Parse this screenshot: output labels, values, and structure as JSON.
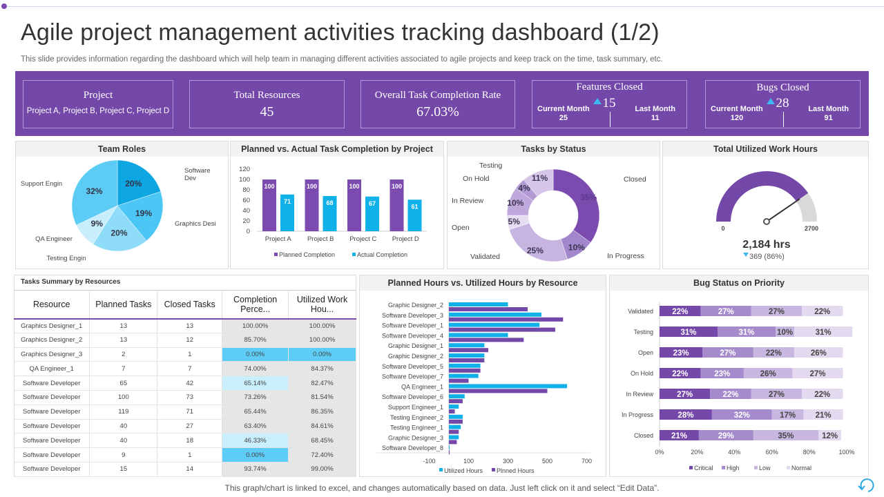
{
  "title": "Agile project management activities tracking dashboard (1/2)",
  "subtitle": "This slide provides information regarding the dashboard which will help team in managing different activities associated to agile projects and keep track on the time, task summary, etc.",
  "kpis": {
    "project": {
      "label": "Project",
      "value": "Project A, Project B, Project C, Project D"
    },
    "resources": {
      "label": "Total Resources",
      "value": "45"
    },
    "completion": {
      "label": "Overall Task Completion Rate",
      "value": "67.03%"
    },
    "features": {
      "label": "Features Closed",
      "value": "15",
      "current_label": "Current Month",
      "current": "25",
      "last_label": "Last Month",
      "last": "11"
    },
    "bugs": {
      "label": "Bugs Closed",
      "value": "28",
      "current_label": "Current Month",
      "current": "120",
      "last_label": "Last Month",
      "last": "91"
    }
  },
  "colors": {
    "purple": "#7448a8",
    "blue": "#10b0e8",
    "accent": "#3db8f5"
  },
  "chart_data": [
    {
      "id": "team_roles",
      "type": "pie",
      "title": "Team Roles",
      "categories": [
        "Software Dev",
        "Graphics Desi",
        "Testing Engin",
        "QA Engineer",
        "Support Engin"
      ],
      "values": [
        20,
        19,
        20,
        9,
        32
      ],
      "labels": [
        "20%",
        "19%",
        "20%",
        "9%",
        "32%"
      ]
    },
    {
      "id": "planned_actual",
      "type": "bar",
      "title": "Planned vs. Actual Task Completion  by Project",
      "categories": [
        "Project A",
        "Project B",
        "Project C",
        "Project D"
      ],
      "series": [
        {
          "name": "Planned Completion",
          "values": [
            100,
            100,
            100,
            100
          ]
        },
        {
          "name": "Actual Completion",
          "values": [
            71,
            68,
            67,
            61
          ]
        }
      ],
      "ylim": [
        0,
        120
      ],
      "yticks": [
        "0",
        "20",
        "40",
        "60",
        "80",
        "100",
        "120"
      ],
      "legend": "bottom"
    },
    {
      "id": "tasks_status",
      "type": "pie",
      "title": "Tasks by Status",
      "categories": [
        "Closed",
        "In Progress",
        "Validated",
        "Open",
        "In Review",
        "On Hold",
        "Testing"
      ],
      "values": [
        35,
        10,
        25,
        5,
        10,
        4,
        11
      ],
      "labels": [
        "35%",
        "10%",
        "25%",
        "5%",
        "10%",
        "4%",
        "11%"
      ]
    },
    {
      "id": "work_hours",
      "type": "gauge",
      "title": "Total Utilized Work Hours",
      "min": "0",
      "max": "2700",
      "value": 2184,
      "value_label": "2,184 hrs",
      "delta": "369 (86%)"
    },
    {
      "id": "hours_by_resource",
      "type": "bar",
      "orientation": "horizontal",
      "title": "Planned Hours vs. Utilized Hours by Resource",
      "categories": [
        "Graphic Designer_2",
        "Software Developer_3",
        "Software Developer_1",
        "Software Developer_4",
        "Graphic Designer_1",
        "Graphic Designer_2",
        "Software Developer_5",
        "Software Developer_7",
        "QA Engineer_1",
        "Software Developer_6",
        "Support Engineer_1",
        "Testing Engineer_2",
        "Testing Engineer_1",
        "Graphic Designer_3",
        "Software Developer_8"
      ],
      "series": [
        {
          "name": "Utilized Hours",
          "values": [
            300,
            470,
            460,
            300,
            180,
            180,
            160,
            150,
            600,
            80,
            50,
            70,
            60,
            50,
            2
          ]
        },
        {
          "name": "Plnned Hours",
          "values": [
            400,
            580,
            540,
            380,
            200,
            180,
            160,
            100,
            500,
            70,
            30,
            70,
            50,
            40,
            2
          ]
        }
      ],
      "xlim": [
        -100,
        700
      ],
      "xticks": [
        "-100",
        "100",
        "300",
        "500",
        "700"
      ],
      "legend": "bottom"
    },
    {
      "id": "bug_status",
      "type": "bar",
      "orientation": "horizontal",
      "stacked": true,
      "title": "Bug Status on Priority",
      "categories": [
        "Validated",
        "Testing",
        "Open",
        "On Hold",
        "In Review",
        "In Progress",
        "Closed"
      ],
      "series": [
        {
          "name": "Critical",
          "values": [
            22,
            31,
            23,
            22,
            27,
            28,
            21
          ]
        },
        {
          "name": "High",
          "values": [
            27,
            31,
            27,
            23,
            22,
            32,
            29
          ]
        },
        {
          "name": "Low",
          "values": [
            27,
            10,
            22,
            26,
            27,
            17,
            35
          ]
        },
        {
          "name": "Normal",
          "values": [
            22,
            31,
            26,
            27,
            22,
            21,
            12
          ]
        }
      ],
      "xticks": [
        "0%",
        "20%",
        "40%",
        "60%",
        "80%",
        "100%"
      ],
      "legend": "bottom"
    }
  ],
  "table": {
    "title": "Tasks Summary by Resources",
    "headers": [
      "Resource",
      "Planned Tasks",
      "Closed Tasks",
      "Completion Perce...",
      "Utilized Work Hou..."
    ],
    "rows": [
      [
        "Graphics Designer_1",
        "13",
        "13",
        "100.00%",
        "100.00%"
      ],
      [
        "Graphics Designer_2",
        "13",
        "12",
        "85.70%",
        "100.00%"
      ],
      [
        "Graphics Designer_3",
        "2",
        "1",
        "0.00%",
        "0.00%"
      ],
      [
        "QA Engineer_1",
        "7",
        "7",
        "74.00%",
        "84.37%"
      ],
      [
        "Software Developer",
        "65",
        "42",
        "65.14%",
        "82.47%"
      ],
      [
        "Software Developer",
        "100",
        "73",
        "73.26%",
        "81.54%"
      ],
      [
        "Software Developer",
        "119",
        "71",
        "65.44%",
        "86.35%"
      ],
      [
        "Software Developer",
        "40",
        "27",
        "63.40%",
        "84.61%"
      ],
      [
        "Software Developer",
        "40",
        "18",
        "46.33%",
        "68.45%"
      ],
      [
        "Software Developer",
        "9",
        "1",
        "0.00%",
        "72.40%"
      ],
      [
        "Software Developer",
        "15",
        "14",
        "93.74%",
        "99.00%"
      ]
    ]
  },
  "footer": "This graph/chart is linked to excel,  and changes automatically based on data. Just left click on it and select “Edit Data”."
}
